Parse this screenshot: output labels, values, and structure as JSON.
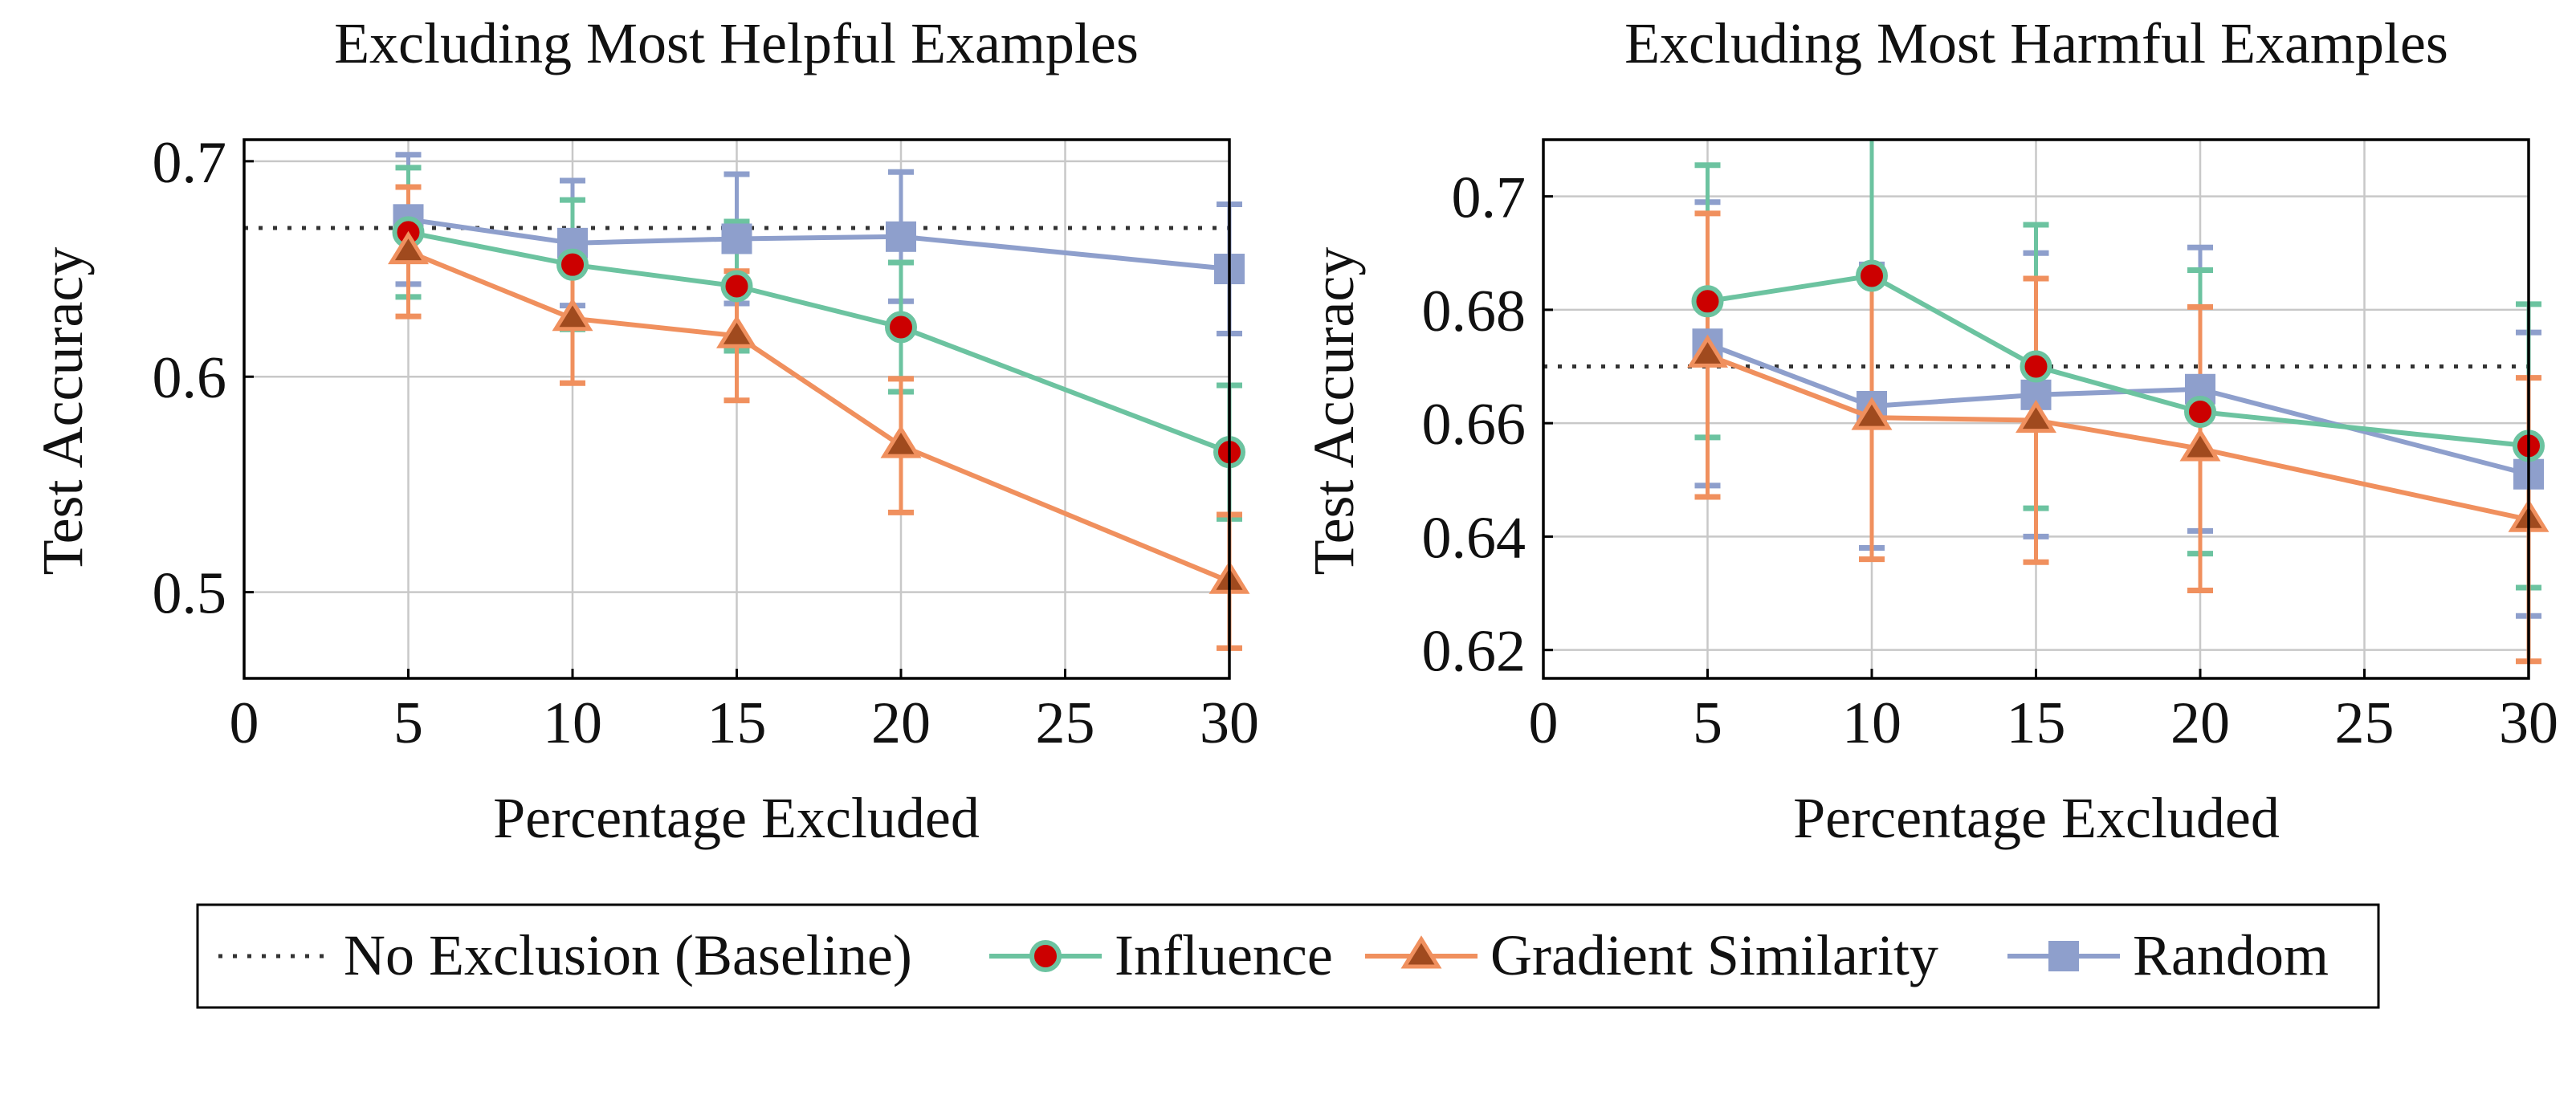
{
  "chart_data": [
    {
      "type": "line",
      "title": "Excluding Most Helpful Examples",
      "xlabel": "Percentage Excluded",
      "ylabel": "Test Accuracy",
      "xlim": [
        0,
        30
      ],
      "ylim": [
        0.46,
        0.71
      ],
      "xticks": [
        0,
        5,
        10,
        15,
        20,
        25,
        30
      ],
      "xtick_labels": [
        "0",
        "5",
        "10",
        "15",
        "20",
        "25",
        "30"
      ],
      "yticks": [
        0.5,
        0.6,
        0.7
      ],
      "ytick_labels": [
        "0.5",
        "0.6",
        "0.7"
      ],
      "grid": true,
      "baseline": 0.669,
      "x": [
        5,
        10,
        15,
        20,
        30
      ],
      "series": [
        {
          "name": "Random",
          "key": "random",
          "values": [
            0.673,
            0.662,
            0.664,
            0.665,
            0.65
          ],
          "errors": [
            0.03,
            0.029,
            0.03,
            0.03,
            0.03
          ]
        },
        {
          "name": "Influence",
          "key": "influence",
          "values": [
            0.667,
            0.652,
            0.642,
            0.623,
            0.565
          ],
          "errors": [
            0.03,
            0.03,
            0.03,
            0.03,
            0.031
          ]
        },
        {
          "name": "Gradient Similarity",
          "key": "gradient",
          "values": [
            0.658,
            0.627,
            0.619,
            0.568,
            0.505
          ],
          "errors": [
            0.03,
            0.03,
            0.03,
            0.031,
            0.031
          ]
        }
      ]
    },
    {
      "type": "line",
      "title": "Excluding Most Harmful Examples",
      "xlabel": "Percentage Excluded",
      "ylabel": "Test Accuracy",
      "xlim": [
        0,
        30
      ],
      "ylim": [
        0.615,
        0.71
      ],
      "xticks": [
        0,
        5,
        10,
        15,
        20,
        25,
        30
      ],
      "xtick_labels": [
        "0",
        "5",
        "10",
        "15",
        "20",
        "25",
        "30"
      ],
      "yticks": [
        0.62,
        0.64,
        0.66,
        0.68,
        0.7
      ],
      "ytick_labels": [
        "0.62",
        "0.64",
        "0.66",
        "0.68",
        "0.7"
      ],
      "grid": true,
      "baseline": 0.67,
      "x": [
        5,
        10,
        15,
        20,
        30
      ],
      "series": [
        {
          "name": "Random",
          "key": "random",
          "values": [
            0.674,
            0.663,
            0.665,
            0.666,
            0.651
          ],
          "errors": [
            0.025,
            0.025,
            0.025,
            0.025,
            0.025
          ]
        },
        {
          "name": "Influence",
          "key": "influence",
          "values": [
            0.6815,
            0.686,
            0.67,
            0.662,
            0.656
          ],
          "errors": [
            0.024,
            0.024,
            0.025,
            0.025,
            0.025
          ]
        },
        {
          "name": "Gradient Similarity",
          "key": "gradient",
          "values": [
            0.672,
            0.661,
            0.6605,
            0.6555,
            0.643
          ],
          "errors": [
            0.025,
            0.025,
            0.025,
            0.025,
            0.025
          ]
        }
      ]
    }
  ],
  "legend": {
    "baseline_label": "No Exclusion (Baseline)",
    "influence_label": "Influence",
    "gradient_label": "Gradient Similarity",
    "random_label": "Random"
  },
  "colors": {
    "influence": "#6cc3a0",
    "influence_marker": "#cc0000",
    "gradient": "#f0905e",
    "gradient_marker": "#a04a1e",
    "random": "#8e9fcc",
    "baseline": "#333333",
    "grid": "#c8c8c8"
  }
}
